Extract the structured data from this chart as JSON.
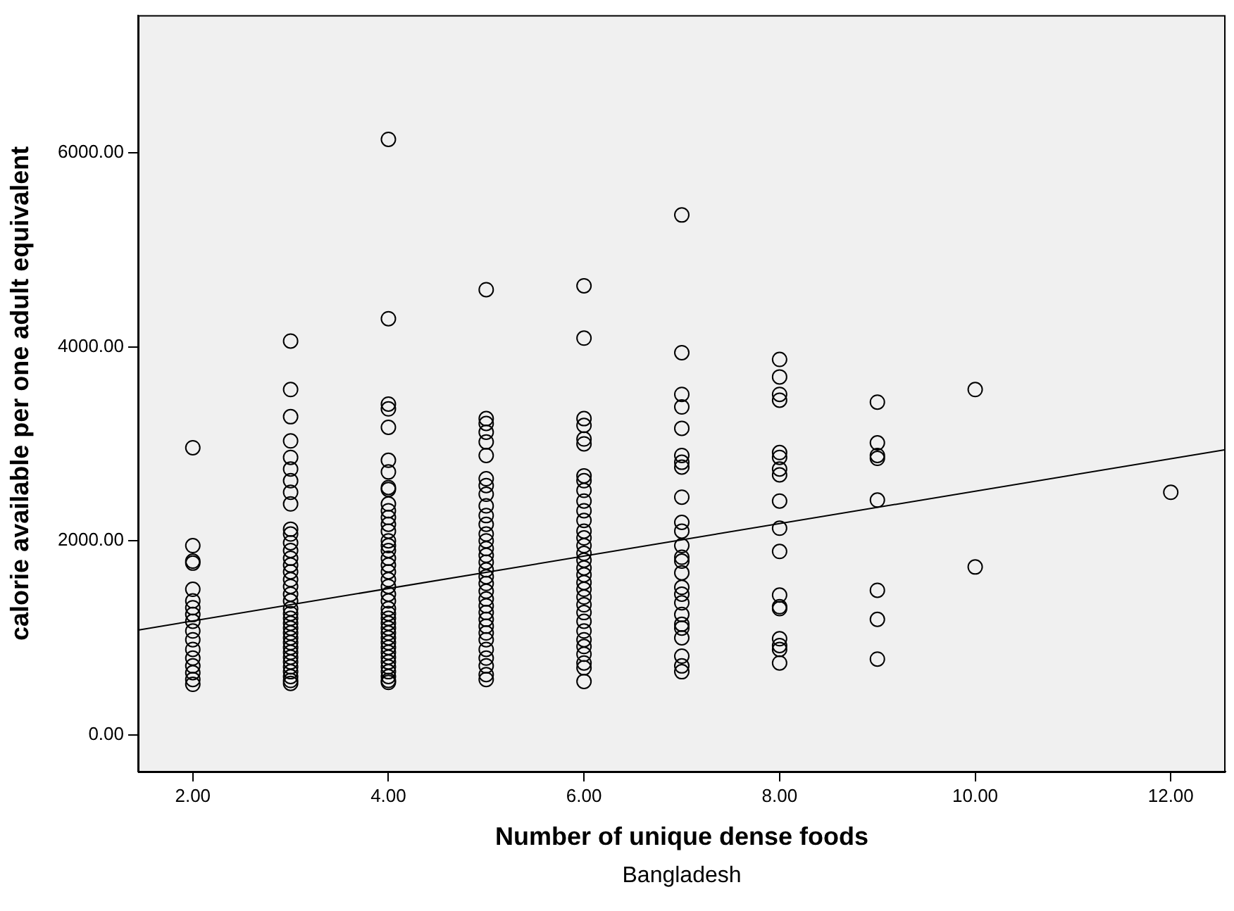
{
  "chart_data": {
    "type": "scatter",
    "xlabel": "Number of unique dense foods",
    "ylabel": "calorie available per one adult equivalent",
    "annotations": [
      "Bangladesh"
    ],
    "xlim": [
      1.44,
      12.56
    ],
    "ylim": [
      -380,
      7420
    ],
    "xticks": [
      {
        "value": 2,
        "label": "2.00"
      },
      {
        "value": 4,
        "label": "4.00"
      },
      {
        "value": 6,
        "label": "6.00"
      },
      {
        "value": 8,
        "label": "8.00"
      },
      {
        "value": 10,
        "label": "10.00"
      },
      {
        "value": 12,
        "label": "12.00"
      }
    ],
    "yticks": [
      {
        "value": 0,
        "label": "0.00"
      },
      {
        "value": 2000,
        "label": "2000.00"
      },
      {
        "value": 4000,
        "label": "4000.00"
      },
      {
        "value": 6000,
        "label": "6000.00"
      }
    ],
    "grid": false,
    "legend": false,
    "marker": "circle",
    "series": [
      {
        "type": "scatter",
        "color": "#000000",
        "x": [
          2,
          2,
          2,
          2,
          2,
          2,
          2,
          2,
          2,
          2,
          2,
          2,
          2,
          2,
          2,
          2,
          2,
          3,
          3,
          3,
          3,
          3,
          3,
          3,
          3,
          3,
          3,
          3,
          3,
          3,
          3,
          3,
          3,
          3,
          3,
          3,
          3,
          3,
          3,
          3,
          3,
          3,
          3,
          3,
          3,
          3,
          3,
          3,
          3,
          3,
          3,
          3,
          3,
          3,
          4,
          4,
          4,
          4,
          4,
          4,
          4,
          4,
          4,
          4,
          4,
          4,
          4,
          4,
          4,
          4,
          4,
          4,
          4,
          4,
          4,
          4,
          4,
          4,
          4,
          4,
          4,
          4,
          4,
          4,
          4,
          4,
          4,
          4,
          4,
          4,
          4,
          4,
          4,
          4,
          4,
          5,
          5,
          5,
          5,
          5,
          5,
          5,
          5,
          5,
          5,
          5,
          5,
          5,
          5,
          5,
          5,
          5,
          5,
          5,
          5,
          5,
          5,
          5,
          5,
          5,
          5,
          5,
          5,
          5,
          5,
          5,
          5,
          5,
          6,
          6,
          6,
          6,
          6,
          6,
          6,
          6,
          6,
          6,
          6,
          6,
          6,
          6,
          6,
          6,
          6,
          6,
          6,
          6,
          6,
          6,
          6,
          6,
          6,
          6,
          6,
          6,
          6,
          6,
          6,
          6,
          7,
          7,
          7,
          7,
          7,
          7,
          7,
          7,
          7,
          7,
          7,
          7,
          7,
          7,
          7,
          7,
          7,
          7,
          7,
          7,
          7,
          7,
          7,
          7,
          7,
          8,
          8,
          8,
          8,
          8,
          8,
          8,
          8,
          8,
          8,
          8,
          8,
          8,
          8,
          8,
          8,
          8,
          8,
          9,
          9,
          9,
          9,
          9,
          9,
          9,
          9,
          10,
          10,
          12
        ],
        "values": [
          2960,
          1950,
          1790,
          1770,
          1500,
          1380,
          1310,
          1240,
          1170,
          1070,
          980,
          880,
          790,
          710,
          640,
          570,
          520,
          4060,
          3560,
          3280,
          3030,
          2860,
          2740,
          2620,
          2500,
          2380,
          2120,
          2070,
          1980,
          1900,
          1820,
          1750,
          1680,
          1600,
          1530,
          1450,
          1380,
          1300,
          1250,
          1200,
          1150,
          1100,
          1050,
          1000,
          950,
          900,
          850,
          800,
          750,
          700,
          650,
          600,
          560,
          530,
          6140,
          4290,
          3410,
          3360,
          3170,
          2830,
          2710,
          2550,
          2530,
          2380,
          2310,
          2240,
          2170,
          2100,
          2000,
          1950,
          1900,
          1820,
          1750,
          1680,
          1600,
          1530,
          1450,
          1380,
          1300,
          1250,
          1200,
          1150,
          1100,
          1050,
          1000,
          950,
          900,
          850,
          800,
          750,
          700,
          650,
          600,
          560,
          540,
          4590,
          3260,
          3210,
          3120,
          3020,
          2880,
          2640,
          2570,
          2480,
          2360,
          2260,
          2170,
          2070,
          2000,
          1920,
          1850,
          1780,
          1700,
          1630,
          1560,
          1480,
          1400,
          1330,
          1260,
          1190,
          1120,
          1050,
          980,
          880,
          790,
          710,
          620,
          570,
          4630,
          4090,
          3260,
          3190,
          3050,
          3000,
          2670,
          2620,
          2520,
          2410,
          2310,
          2210,
          2100,
          2030,
          1950,
          1870,
          1800,
          1720,
          1650,
          1570,
          1500,
          1420,
          1340,
          1260,
          1170,
          1070,
          980,
          910,
          830,
          740,
          690,
          550,
          5360,
          3940,
          3510,
          3380,
          3160,
          2880,
          2810,
          2760,
          2450,
          2190,
          2100,
          1950,
          1830,
          1790,
          1670,
          1520,
          1450,
          1360,
          1240,
          1140,
          1100,
          1000,
          810,
          710,
          650,
          3870,
          3690,
          3510,
          3450,
          2910,
          2860,
          2740,
          2680,
          2410,
          2130,
          1890,
          1440,
          1320,
          1300,
          990,
          920,
          880,
          740,
          3430,
          3010,
          2880,
          2850,
          2420,
          1490,
          1190,
          780,
          3560,
          1730,
          2500
        ]
      },
      {
        "type": "line",
        "color": "#000000",
        "marker": "none",
        "x": [
          1.44,
          12.56
        ],
        "values": [
          1080,
          2940
        ]
      }
    ]
  }
}
